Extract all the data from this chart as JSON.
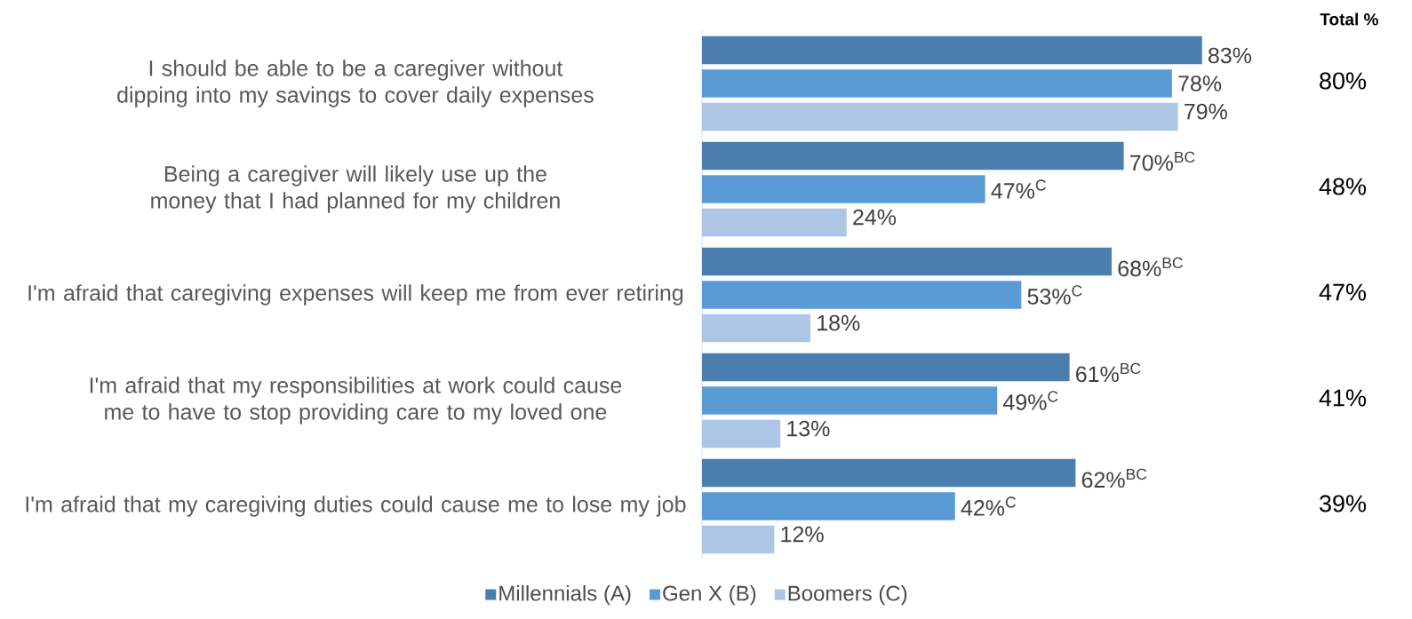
{
  "chart_data": {
    "type": "bar",
    "orientation": "horizontal",
    "legend": "bottom",
    "categories": [
      "I should be able to be a caregiver without dipping into my savings to cover daily expenses",
      "Being a caregiver will likely use up the money that I had planned for my children",
      "I'm afraid that caregiving expenses will keep me from ever retiring",
      "I'm afraid that my responsibilities at work could cause me to have to stop providing care to my loved one",
      "I'm afraid that my caregiving duties could cause me to lose my job"
    ],
    "series": [
      {
        "name": "Millennials (A)",
        "color": "#4a7eae",
        "values": [
          83,
          70,
          68,
          61,
          62
        ],
        "value_labels": [
          "83%",
          "70%$^{BC}$",
          "68%$^{BC}$",
          "61%$^{BC}$",
          "62%$^{BC}$"
        ]
      },
      {
        "name": "Gen X (B)",
        "color": "#5b9bd5",
        "values": [
          78,
          47,
          53,
          49,
          42
        ],
        "value_labels": [
          "78%",
          "47%$^{C}$",
          "53%$^{C}$",
          "49%$^{C}$",
          "42%$^{C}$"
        ]
      },
      {
        "name": "Boomers (C)",
        "color": "#adc6e6",
        "values": [
          79,
          24,
          18,
          13,
          12
        ],
        "value_labels": [
          "79%",
          "24%",
          "18%",
          "13%",
          "12%"
        ]
      }
    ],
    "annotations": [
      "Total %",
      "80%",
      "48%",
      "47%",
      "41%",
      "39%"
    ]
  }
}
